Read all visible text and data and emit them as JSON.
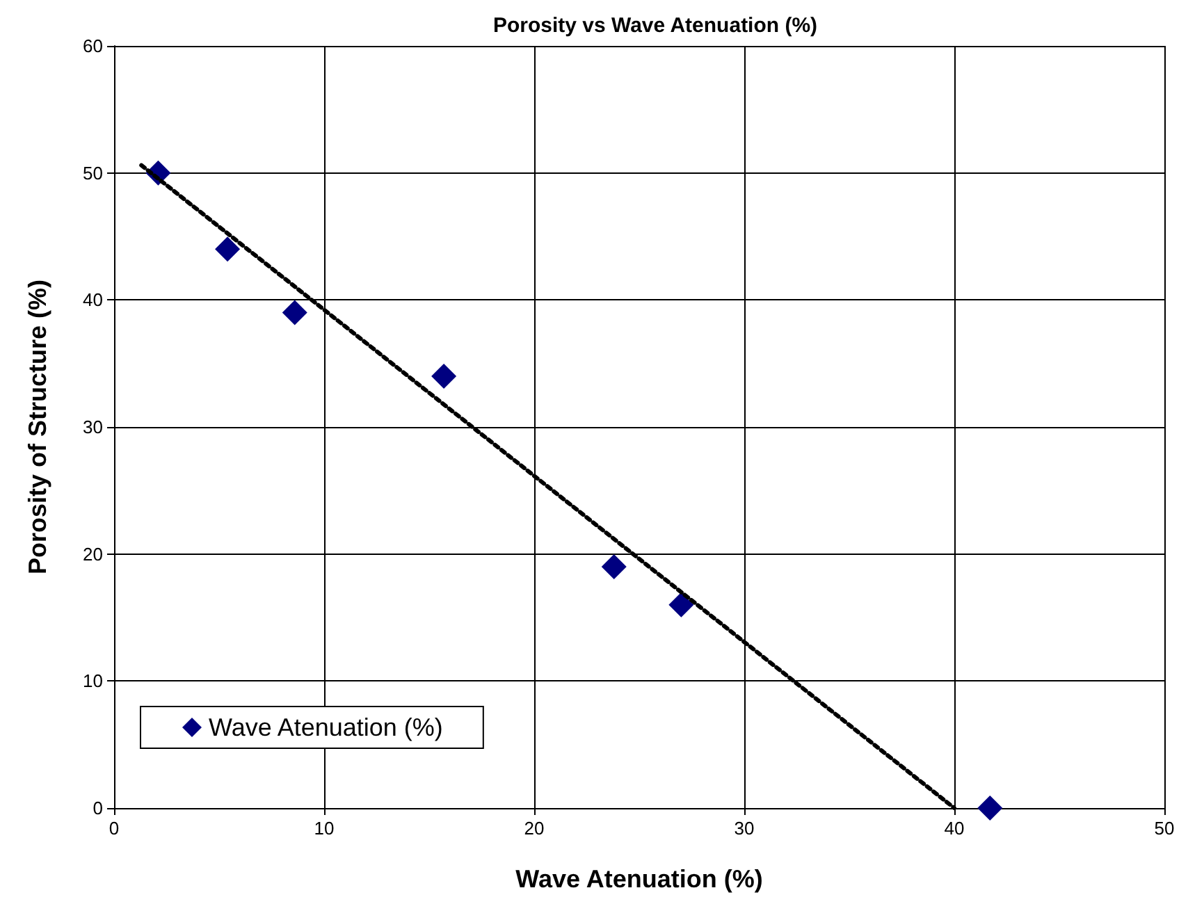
{
  "chart_data": {
    "type": "scatter",
    "title": "Porosity vs Wave Atenuation (%)",
    "xlabel": "Wave Atenuation (%)",
    "ylabel": "Porosity of Structure (%)",
    "xlim": [
      0,
      50
    ],
    "xticks": [
      0,
      10,
      20,
      30,
      40,
      50
    ],
    "ylim": [
      0,
      60
    ],
    "yticks": [
      0,
      10,
      20,
      30,
      40,
      50,
      60
    ],
    "grid": true,
    "legend": "bottom left",
    "series": [
      {
        "name": "Wave Atenuation (%)",
        "color": "#000080",
        "marker": "diamond",
        "x": [
          2.1,
          5.4,
          8.6,
          15.7,
          23.8,
          27.0,
          41.7
        ],
        "values": [
          50,
          44,
          39,
          34,
          19,
          16,
          0
        ]
      },
      {
        "type": "line",
        "color": "#000000",
        "line_style": "dotted",
        "marker": "none",
        "x": [
          1.3,
          40.0
        ],
        "values": [
          50.6,
          0
        ]
      }
    ]
  }
}
